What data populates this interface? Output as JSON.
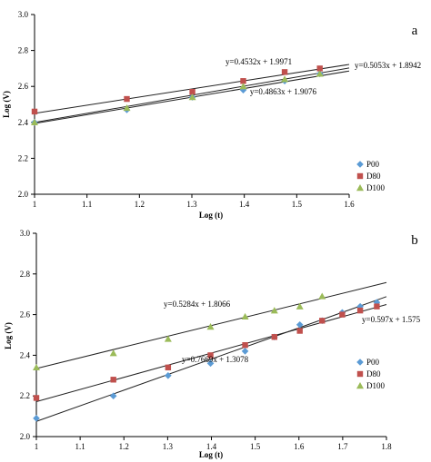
{
  "chart_data": [
    {
      "type": "scatter",
      "panel_label": "a",
      "xlabel": "Log (t)",
      "ylabel": "Log (V)",
      "xlim": [
        1,
        1.6
      ],
      "ylim": [
        2.0,
        3.0
      ],
      "xticks": [
        "1",
        "1.1",
        "1.2",
        "1.3",
        "1.4",
        "1.5",
        "1.6"
      ],
      "yticks": [
        "2.0",
        "2.2",
        "2.4",
        "2.6",
        "2.8",
        "3.0"
      ],
      "legend_position": "right",
      "series": [
        {
          "name": "P00",
          "marker": "diamond",
          "color": "#5b9bd5",
          "x": [
            1,
            1.176,
            1.301,
            1.398,
            1.477,
            1.544
          ],
          "y": [
            2.4,
            2.47,
            2.54,
            2.58,
            2.63,
            2.67
          ],
          "fit": {
            "label": "y=0.4863x + 1.9076",
            "slope": 0.4863,
            "intercept": 1.9076
          }
        },
        {
          "name": "D80",
          "marker": "square",
          "color": "#c0504d",
          "x": [
            1,
            1.176,
            1.301,
            1.398,
            1.477,
            1.544
          ],
          "y": [
            2.46,
            2.53,
            2.57,
            2.63,
            2.68,
            2.7
          ],
          "fit": {
            "label": "y=0.4532x + 1.9971",
            "slope": 0.4532,
            "intercept": 1.9971
          }
        },
        {
          "name": "D100",
          "marker": "triangle",
          "color": "#9bbb59",
          "x": [
            1,
            1.176,
            1.301,
            1.398,
            1.477,
            1.544
          ],
          "y": [
            2.4,
            2.48,
            2.54,
            2.6,
            2.64,
            2.67
          ],
          "fit": {
            "label": "y=0.5053x + 1.8942",
            "slope": 0.5053,
            "intercept": 1.8942
          }
        }
      ]
    },
    {
      "type": "scatter",
      "panel_label": "b",
      "xlabel": "Log (t)",
      "ylabel": "Log (V)",
      "xlim": [
        1,
        1.8
      ],
      "ylim": [
        2.0,
        3.0
      ],
      "xticks": [
        "1",
        "1.1",
        "1.2",
        "1.3",
        "1.4",
        "1.5",
        "1.6",
        "1.7",
        "1.8"
      ],
      "yticks": [
        "2.0",
        "2.2",
        "2.4",
        "2.6",
        "2.8",
        "3.0"
      ],
      "legend_position": "right",
      "series": [
        {
          "name": "P00",
          "marker": "diamond",
          "color": "#5b9bd5",
          "x": [
            1,
            1.176,
            1.301,
            1.398,
            1.477,
            1.544,
            1.602,
            1.653,
            1.699,
            1.74,
            1.778
          ],
          "y": [
            2.09,
            2.2,
            2.3,
            2.36,
            2.42,
            2.49,
            2.55,
            2.57,
            2.61,
            2.64,
            2.66
          ],
          "fit": {
            "label": "y=0.7669x + 1.3078",
            "slope": 0.7669,
            "intercept": 1.3078
          }
        },
        {
          "name": "D80",
          "marker": "square",
          "color": "#c0504d",
          "x": [
            1,
            1.176,
            1.301,
            1.398,
            1.477,
            1.544,
            1.602,
            1.653,
            1.699,
            1.74,
            1.778
          ],
          "y": [
            2.19,
            2.28,
            2.34,
            2.4,
            2.45,
            2.49,
            2.52,
            2.57,
            2.6,
            2.62,
            2.64
          ],
          "fit": {
            "label": "y=0.597x + 1.575",
            "slope": 0.597,
            "intercept": 1.575
          }
        },
        {
          "name": "D100",
          "marker": "triangle",
          "color": "#9bbb59",
          "x": [
            1,
            1.176,
            1.301,
            1.398,
            1.477,
            1.544,
            1.602,
            1.653
          ],
          "y": [
            2.34,
            2.41,
            2.48,
            2.54,
            2.59,
            2.62,
            2.64,
            2.69
          ],
          "fit": {
            "label": "y=0.5284x + 1.8066",
            "slope": 0.5284,
            "intercept": 1.8066
          }
        }
      ]
    }
  ]
}
